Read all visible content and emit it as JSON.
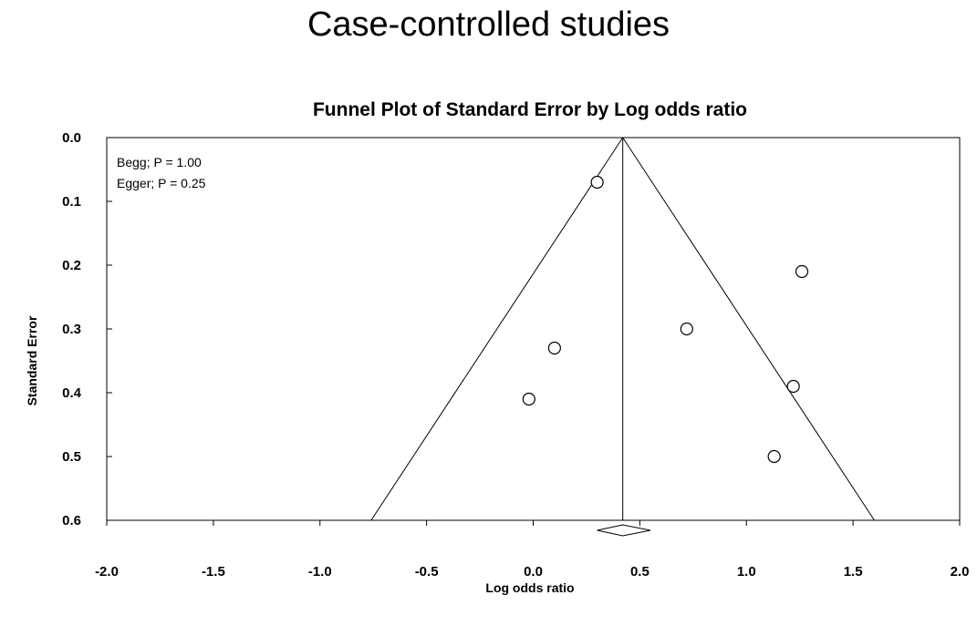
{
  "slide_title": "Case-controlled studies",
  "chart_data": {
    "type": "scatter",
    "title": "Funnel Plot of Standard Error by Log odds ratio",
    "xlabel": "Log odds ratio",
    "ylabel": "Standard Error",
    "xlim": [
      -2.0,
      2.0
    ],
    "ylim": [
      0.0,
      0.6
    ],
    "y_inverted": true,
    "x_ticks": [
      "-2.0",
      "-1.5",
      "-1.0",
      "-0.5",
      "0.0",
      "0.5",
      "1.0",
      "1.5",
      "2.0"
    ],
    "y_ticks": [
      "0.0",
      "0.1",
      "0.2",
      "0.3",
      "0.4",
      "0.5",
      "0.6"
    ],
    "annotations": [
      "Begg; P = 1.00",
      "Egger; P = 0.25"
    ],
    "pooled_estimate": 0.42,
    "funnel": {
      "apex": [
        0.42,
        0.0
      ],
      "base_left": [
        -0.76,
        0.6
      ],
      "base_right": [
        1.6,
        0.6
      ]
    },
    "summary_diamond": {
      "center": 0.42,
      "lower": 0.3,
      "upper": 0.55
    },
    "points": [
      {
        "x": 0.3,
        "y": 0.07
      },
      {
        "x": 1.26,
        "y": 0.21
      },
      {
        "x": 0.72,
        "y": 0.3
      },
      {
        "x": 0.1,
        "y": 0.33
      },
      {
        "x": 1.22,
        "y": 0.39
      },
      {
        "x": -0.02,
        "y": 0.41
      },
      {
        "x": 1.13,
        "y": 0.5
      }
    ],
    "grid": false
  }
}
